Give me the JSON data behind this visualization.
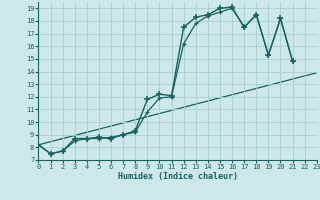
{
  "xlabel": "Humidex (Indice chaleur)",
  "bg_color": "#cce8e8",
  "grid_color": "#aacfcf",
  "line_color": "#1a6060",
  "xlim": [
    0,
    23
  ],
  "ylim": [
    7,
    19.5
  ],
  "xtick_positions": [
    0,
    1,
    2,
    3,
    4,
    5,
    6,
    7,
    8,
    9,
    10,
    11,
    12,
    13,
    14,
    15,
    16,
    17,
    18,
    19,
    20,
    21,
    22,
    23
  ],
  "ytick_positions": [
    7,
    8,
    9,
    10,
    11,
    12,
    13,
    14,
    15,
    16,
    17,
    18,
    19
  ],
  "curve1_x": [
    0,
    1,
    2,
    3,
    4,
    5,
    6,
    7,
    8,
    9,
    10,
    11,
    12,
    13,
    14,
    15,
    16,
    17,
    18,
    19,
    20,
    21
  ],
  "curve1_y": [
    8.2,
    7.5,
    7.7,
    8.7,
    8.7,
    8.8,
    8.7,
    9.0,
    9.3,
    11.8,
    12.2,
    12.1,
    17.5,
    18.3,
    18.5,
    19.0,
    19.1,
    17.5,
    18.5,
    15.3,
    18.2,
    14.8
  ],
  "curve2_x": [
    0,
    1,
    2,
    3,
    4,
    5,
    6,
    7,
    8,
    9,
    10,
    11,
    12,
    13,
    14,
    15,
    16,
    17,
    18,
    19,
    20,
    21
  ],
  "curve2_y": [
    8.2,
    7.5,
    7.7,
    8.5,
    8.7,
    8.7,
    8.8,
    9.0,
    9.2,
    10.8,
    11.9,
    12.0,
    16.2,
    17.8,
    18.4,
    18.7,
    19.0,
    17.5,
    18.5,
    15.3,
    18.2,
    14.8
  ],
  "line3_x": [
    0,
    23
  ],
  "line3_y": [
    8.2,
    13.9
  ],
  "xlabel_fontsize": 6,
  "tick_fontsize": 5
}
